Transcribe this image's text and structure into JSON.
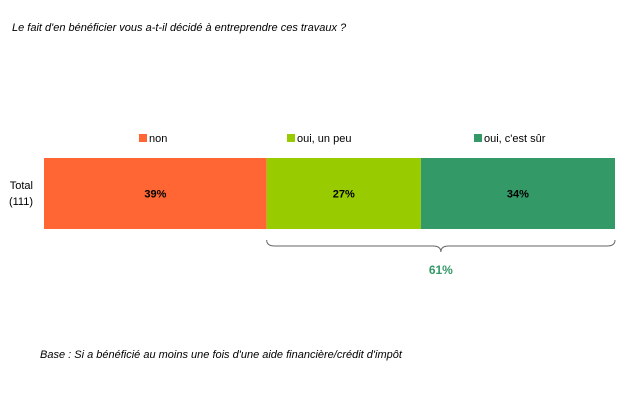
{
  "chart_data": {
    "type": "bar",
    "stacked": true,
    "orientation": "horizontal",
    "title": "Le fait d'en bénéficier vous a-t-il décidé à entreprendre ces travaux ?",
    "categories": [
      "Total\n(111)"
    ],
    "category_lines": [
      "Total",
      "(111)"
    ],
    "series": [
      {
        "name": "non",
        "values": [
          39
        ],
        "label": "39%",
        "color": "#FF6633"
      },
      {
        "name": "oui, un peu",
        "values": [
          27
        ],
        "label": "27%",
        "color": "#99CC00"
      },
      {
        "name": "oui, c'est sûr",
        "values": [
          34
        ],
        "label": "34%",
        "color": "#339966"
      }
    ],
    "xlim": [
      0,
      100
    ],
    "legend_position": "top",
    "grid": false,
    "annotation": {
      "label": "61%",
      "spans": [
        "oui, un peu",
        "oui, c'est sûr"
      ],
      "color": "#339966"
    },
    "footnote": "Base : Si a bénéficié au moins une fois d'une aide financière/crédit d'impôt"
  }
}
